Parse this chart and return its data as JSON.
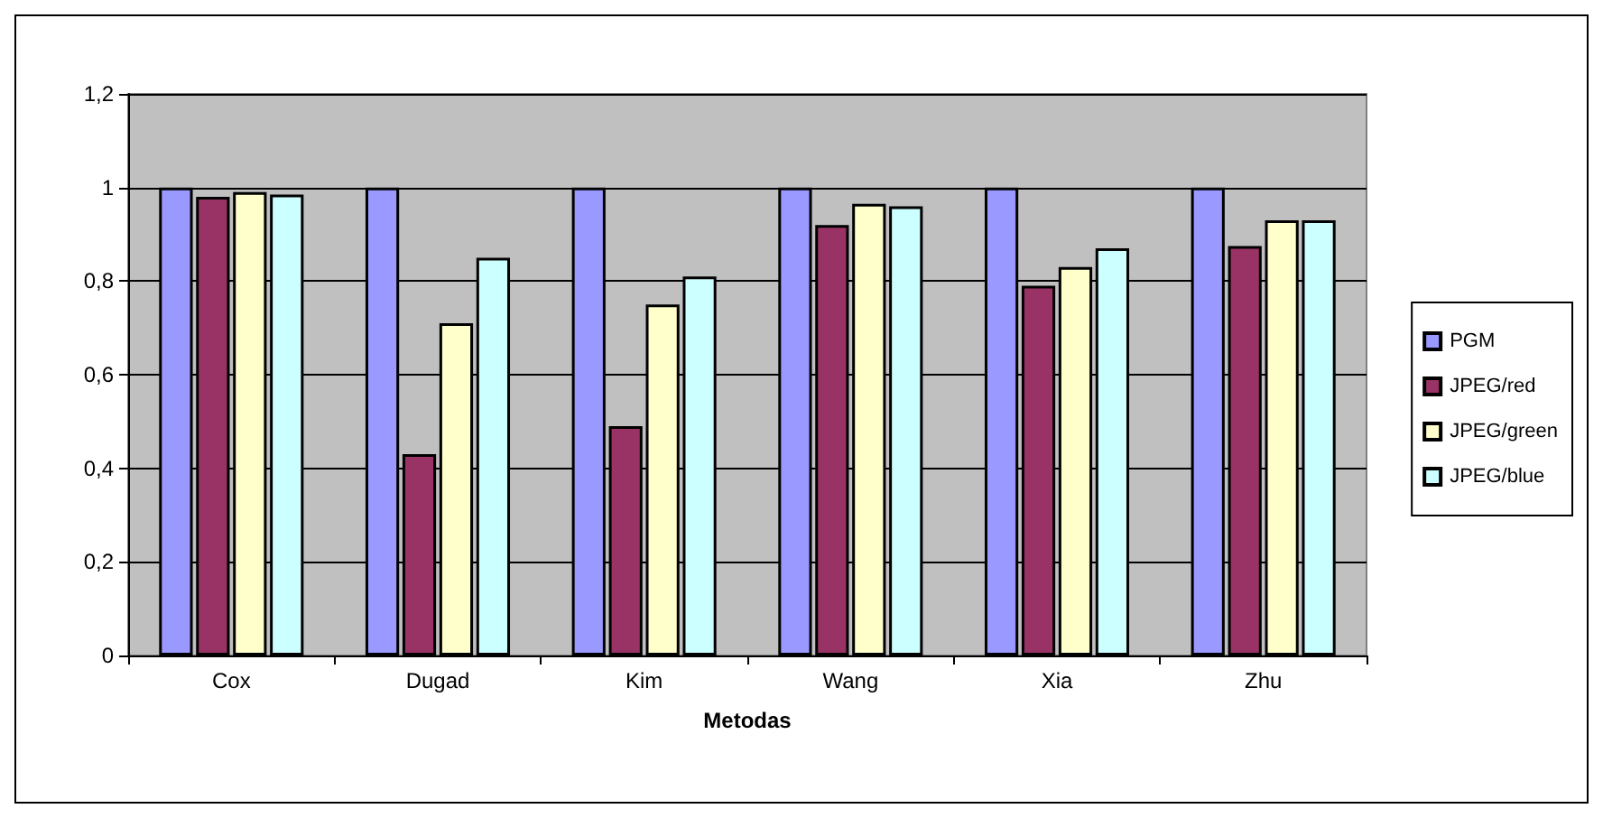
{
  "chart_data": {
    "type": "bar",
    "xlabel": "Metodas",
    "categories": [
      "Cox",
      "Dugad",
      "Kim",
      "Wang",
      "Xia",
      "Zhu"
    ],
    "series": [
      {
        "name": "PGM",
        "color": "#9999ff",
        "values": [
          1,
          1,
          1,
          1,
          1,
          1
        ]
      },
      {
        "name": "JPEG/red",
        "color": "#993366",
        "values": [
          0.98,
          0.43,
          0.49,
          0.92,
          0.79,
          0.875
        ]
      },
      {
        "name": "JPEG/green",
        "color": "#ffffcc",
        "values": [
          0.99,
          0.71,
          0.75,
          0.965,
          0.83,
          0.93
        ]
      },
      {
        "name": "JPEG/blue",
        "color": "#ccffff",
        "values": [
          0.985,
          0.85,
          0.81,
          0.96,
          0.87,
          0.93
        ]
      }
    ],
    "ylim": [
      0,
      1.2
    ],
    "yticks": [
      {
        "value": 0,
        "label": "0"
      },
      {
        "value": 0.2,
        "label": "0,2"
      },
      {
        "value": 0.4,
        "label": "0,4"
      },
      {
        "value": 0.6,
        "label": "0,6"
      },
      {
        "value": 0.8,
        "label": "0,8"
      },
      {
        "value": 1,
        "label": "1"
      },
      {
        "value": 1.2,
        "label": "1,2"
      }
    ],
    "grid": "y",
    "legend": "right"
  }
}
